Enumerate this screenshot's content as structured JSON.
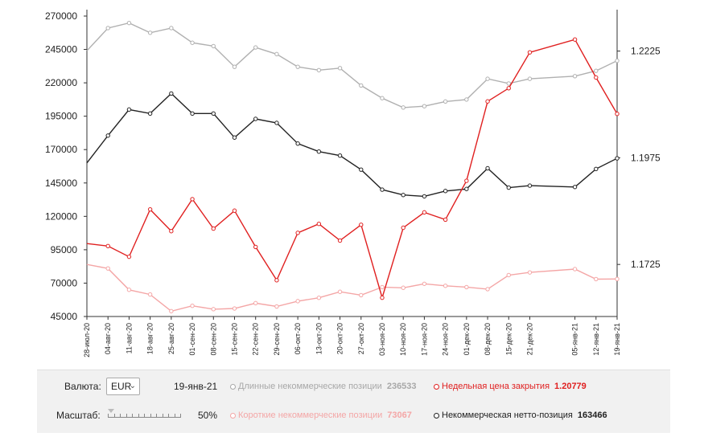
{
  "chart_data": {
    "type": "line",
    "x": [
      "28-июл-20",
      "04-авг-20",
      "11-авг-20",
      "18-авг-20",
      "25-авг-20",
      "01-сен-20",
      "08-сен-20",
      "15-сен-20",
      "22-сен-20",
      "29-сен-20",
      "06-окт-20",
      "13-окт-20",
      "20-окт-20",
      "27-окт-20",
      "03-ноя-20",
      "10-ноя-20",
      "17-ноя-20",
      "24-ноя-20",
      "01-дек-20",
      "08-дек-20",
      "15-дек-20",
      "21-дек-20",
      "05-янв-21",
      "12-янв-21",
      "19-янв-21"
    ],
    "x_tick_labels": [
      "28-июл-20",
      "04-авг-20",
      "11-авг-20",
      "18-авг-20",
      "25-авг-20",
      "01-сен-20",
      "08-сен-20",
      "15-сен-20",
      "22-сен-20",
      "29-сен-20",
      "06-окт-20",
      "13-окт-20",
      "20-окт-20",
      "27-окт-20",
      "03-ноя-20",
      "10-ноя-20",
      "17-ноя-20",
      "24-ноя-20",
      "01-дек-20",
      "08-дек-20",
      "15-дек-20",
      "21-дек-20",
      "05-янв-21",
      "12-янв-21",
      "19-янв-21"
    ],
    "y_left": {
      "ticks": [
        270000,
        245000,
        220000,
        195000,
        170000,
        145000,
        120000,
        95000,
        70000,
        45000
      ],
      "range": [
        45000,
        270000
      ]
    },
    "y_right": {
      "ticks": [
        1.2225,
        1.1975,
        1.1725
      ],
      "range": [
        1.1603,
        1.2307
      ]
    },
    "series": [
      {
        "name": "Длинные некоммерческие позиции",
        "axis": "left",
        "color": "#b0b0b0",
        "values": [
          244000,
          261000,
          264800,
          257500,
          261000,
          250000,
          247500,
          232000,
          246500,
          241500,
          232000,
          229500,
          231000,
          218000,
          208500,
          201500,
          202500,
          206000,
          207500,
          223000,
          219500,
          223000,
          225000,
          229000,
          236533
        ]
      },
      {
        "name": "Некоммерческая нетто-позиция",
        "axis": "left",
        "color": "#222222",
        "values": [
          160000,
          180500,
          200000,
          197000,
          212000,
          197000,
          197000,
          179000,
          193000,
          190000,
          174500,
          168500,
          165500,
          155000,
          140000,
          136000,
          135000,
          139000,
          140500,
          156000,
          141500,
          143000,
          142000,
          155500,
          163466
        ]
      },
      {
        "name": "Короткие некоммерческие позиции",
        "axis": "left",
        "color": "#f4a6a6",
        "values": [
          84000,
          81000,
          65000,
          61500,
          49000,
          53000,
          50500,
          51000,
          55000,
          52500,
          56500,
          59000,
          63500,
          61000,
          67000,
          66500,
          69500,
          68000,
          67000,
          65500,
          76000,
          78000,
          80500,
          73000,
          73067
        ]
      },
      {
        "name": "Недельная цена закрытия",
        "axis": "right",
        "color": "#e02020",
        "values": [
          1.1774,
          1.1768,
          1.1743,
          1.1854,
          1.1803,
          1.1878,
          1.1809,
          1.1851,
          1.1766,
          1.1688,
          1.1799,
          1.182,
          1.1781,
          1.1818,
          1.1647,
          1.1811,
          1.1847,
          1.183,
          1.1921,
          1.2107,
          1.2138,
          1.2222,
          1.2252,
          1.2163,
          1.20779
        ]
      }
    ],
    "grid": false,
    "legend": "bottom"
  },
  "controls": {
    "currency_label": "Валюта:",
    "currency_value": "EUR",
    "date": "19-янв-21",
    "scale_label": "Масштаб:",
    "scale_value": "50%",
    "scale_level": 0.0
  },
  "legend": {
    "long": {
      "label": "Длинные некоммерческие позиции",
      "value": "236533",
      "color": "#a8a8a8"
    },
    "short": {
      "label": "Короткие некоммерческие позиции",
      "value": "73067",
      "color": "#f4a6a6"
    },
    "close": {
      "label": "Недельная цена закрытия",
      "value": "1.20779",
      "color": "#e02020"
    },
    "net": {
      "label": "Некоммерческая нетто-позиция",
      "value": "163466",
      "color": "#222222"
    }
  }
}
